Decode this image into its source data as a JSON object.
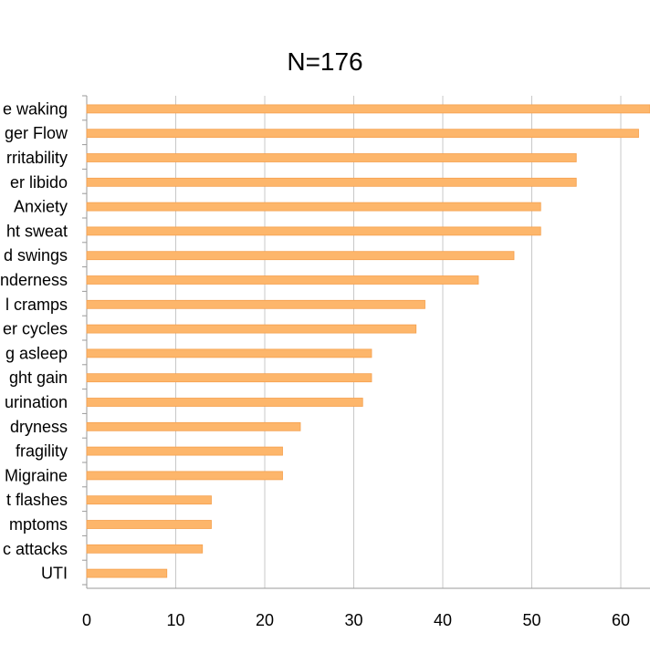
{
  "chart_data": {
    "type": "bar",
    "orientation": "horizontal",
    "title": "N=176",
    "xlabel": "",
    "ylabel": "",
    "xlim": [
      0,
      65
    ],
    "x_ticks": [
      0,
      10,
      20,
      30,
      40,
      50,
      60
    ],
    "grid": "vertical",
    "legend": "none",
    "bar_color": "#FDB66B",
    "bar_edge_color": "#F5A04E",
    "categories": [
      "e waking",
      "ger Flow",
      "rritability",
      "er libido",
      "Anxiety",
      "ht sweat",
      "d swings",
      "nderness",
      "l cramps",
      "er cycles",
      "g asleep",
      "ght gain",
      "urination",
      "dryness",
      "fragility",
      "Migraine",
      "t flashes",
      "mptoms",
      "c attacks",
      "UTI"
    ],
    "values": [
      65,
      62,
      55,
      55,
      51,
      51,
      48,
      44,
      38,
      37,
      32,
      32,
      31,
      24,
      22,
      22,
      14,
      14,
      13,
      9
    ]
  }
}
